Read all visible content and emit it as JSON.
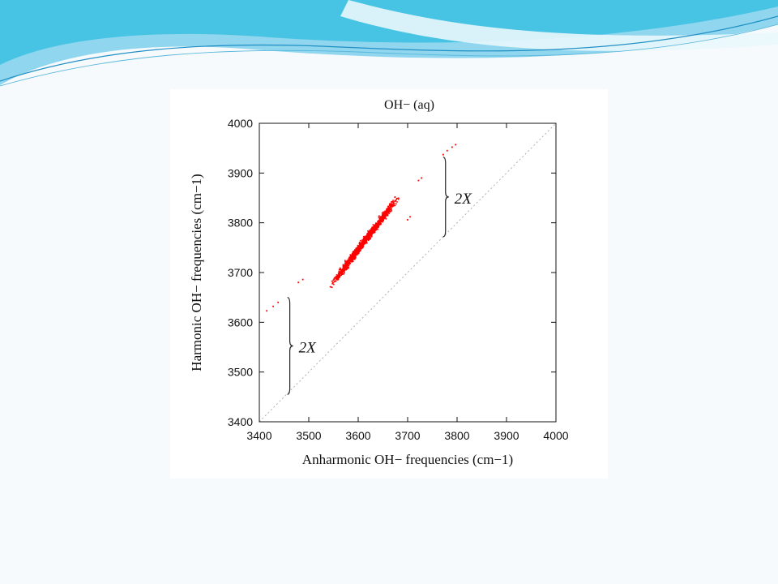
{
  "theme": {
    "background": "#f7fafd",
    "banner_colors": [
      "#3bbfe0",
      "#8fd6ee",
      "#cdeef8",
      "#1f8fc4"
    ],
    "point_color": "#ff0000",
    "diagonal_color": "#b0b0b0"
  },
  "chart_data": {
    "type": "scatter",
    "title": "OH− (aq)",
    "xlabel": "Anharmonic OH− frequencies (cm−1)",
    "ylabel": "Harmonic OH− frequencies (cm−1)",
    "xlim": [
      3400,
      4000
    ],
    "ylim": [
      3400,
      4000
    ],
    "xticks": [
      3400,
      3500,
      3600,
      3700,
      3800,
      3900,
      4000
    ],
    "yticks": [
      3400,
      3500,
      3600,
      3700,
      3800,
      3900,
      4000
    ],
    "grid": false,
    "reference_line": "y = x",
    "series": [
      {
        "trend": {
          "slope": 1.3,
          "intercept": -934
        },
        "x_range": [
          3545,
          3680
        ],
        "outliers": [
          {
            "x": 3415,
            "y": 3623
          },
          {
            "x": 3428,
            "y": 3632
          },
          {
            "x": 3438,
            "y": 3640
          },
          {
            "x": 3479,
            "y": 3680
          },
          {
            "x": 3488,
            "y": 3686
          },
          {
            "x": 3700,
            "y": 3806
          },
          {
            "x": 3705,
            "y": 3812
          },
          {
            "x": 3722,
            "y": 3885
          },
          {
            "x": 3728,
            "y": 3890
          },
          {
            "x": 3772,
            "y": 3937
          },
          {
            "x": 3780,
            "y": 3945
          },
          {
            "x": 3790,
            "y": 3952
          },
          {
            "x": 3797,
            "y": 3957
          }
        ]
      }
    ],
    "annotations": [
      {
        "text": "2X",
        "x": 3460,
        "y_range": [
          3455,
          3650
        ]
      },
      {
        "text": "2X",
        "x": 3775,
        "y_range": [
          3772,
          3932
        ]
      }
    ]
  }
}
